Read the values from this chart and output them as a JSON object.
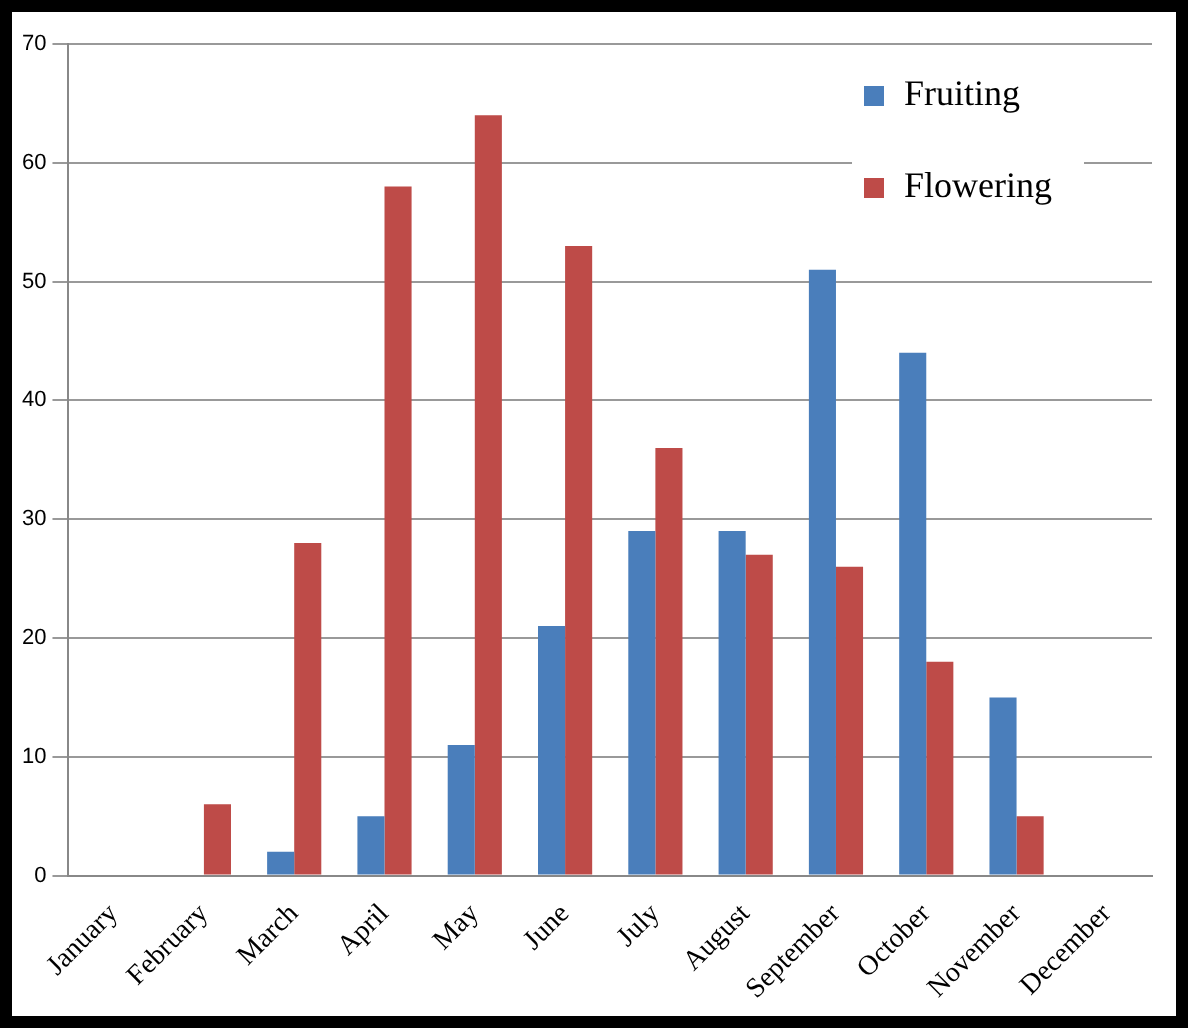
{
  "chart_data": {
    "type": "bar",
    "categories": [
      "January",
      "February",
      "March",
      "April",
      "May",
      "June",
      "July",
      "August",
      "September",
      "October",
      "November",
      "December"
    ],
    "series": [
      {
        "name": "Fruiting",
        "color": "#4a7ebb",
        "values": [
          0,
          0,
          2,
          5,
          11,
          21,
          29,
          29,
          51,
          44,
          15,
          0
        ]
      },
      {
        "name": "Flowering",
        "color": "#be4b48",
        "values": [
          0,
          6,
          28,
          58,
          64,
          53,
          36,
          27,
          26,
          18,
          5,
          0
        ]
      }
    ],
    "ylim": [
      0,
      70
    ],
    "yticks": [
      0,
      10,
      20,
      30,
      40,
      50,
      60,
      70
    ],
    "grid": "y",
    "legend": "top right"
  }
}
